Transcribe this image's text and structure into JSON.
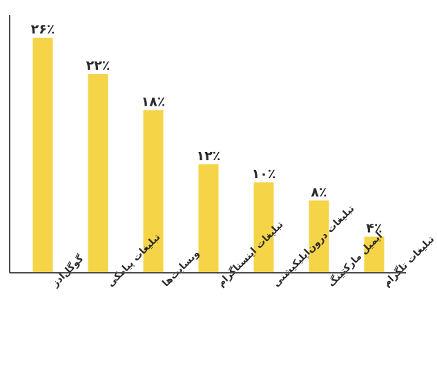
{
  "chart_data": {
    "type": "bar",
    "title": "",
    "xlabel": "",
    "ylabel": "",
    "ylim": [
      0,
      28.5
    ],
    "grid": false,
    "legend": "none",
    "bar_color": "#f5d447",
    "axis_color": "#4a4a4a",
    "text_color": "#2b2b2b",
    "categories": [
      "گوگل‌ادز",
      "تبلیغات پیامکی",
      "وبسایت‌ها",
      "تبلیغات اینستاگرام",
      "تبلیغات درون‌اپلیکیشنی",
      "ایمیل مارکتینگ",
      "تبلیغات تلگرام"
    ],
    "values": [
      26,
      22,
      18,
      12,
      10,
      8,
      4
    ],
    "value_labels": [
      "۲۶٪",
      "۲۲٪",
      "۱۸٪",
      "۱۲٪",
      "۱۰٪",
      "۸٪",
      "۴٪"
    ]
  }
}
